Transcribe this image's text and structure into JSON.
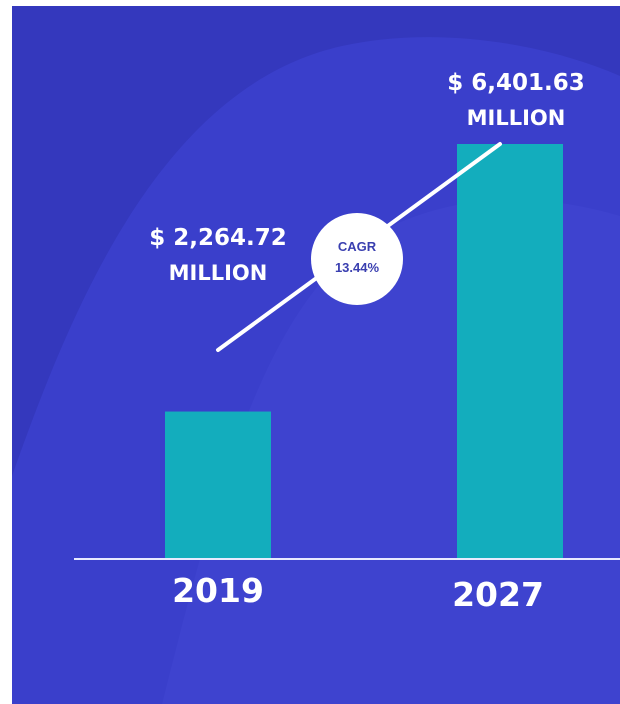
{
  "colors": {
    "background": "#3a3fcb",
    "background_dark": "#2f33b4",
    "background_light": "#4146d3",
    "bar": "#13adbd",
    "text": "#ffffff",
    "badge_fill": "#ffffff",
    "badge_text": "#3a3fb0"
  },
  "chart_data": {
    "type": "bar",
    "categories": [
      "2019",
      "2027"
    ],
    "values": [
      2264.72,
      6401.63
    ],
    "value_labels": [
      {
        "line1": "$ 2,264.72",
        "line2": "MILLION"
      },
      {
        "line1": "$ 6,401.63",
        "line2": "MILLION"
      }
    ],
    "annotation": {
      "line1": "CAGR",
      "line2": "13.44%"
    },
    "title": "",
    "xlabel": "",
    "ylabel": "",
    "ylim": [
      0,
      6401.63
    ],
    "grid": false,
    "legend": "none"
  }
}
